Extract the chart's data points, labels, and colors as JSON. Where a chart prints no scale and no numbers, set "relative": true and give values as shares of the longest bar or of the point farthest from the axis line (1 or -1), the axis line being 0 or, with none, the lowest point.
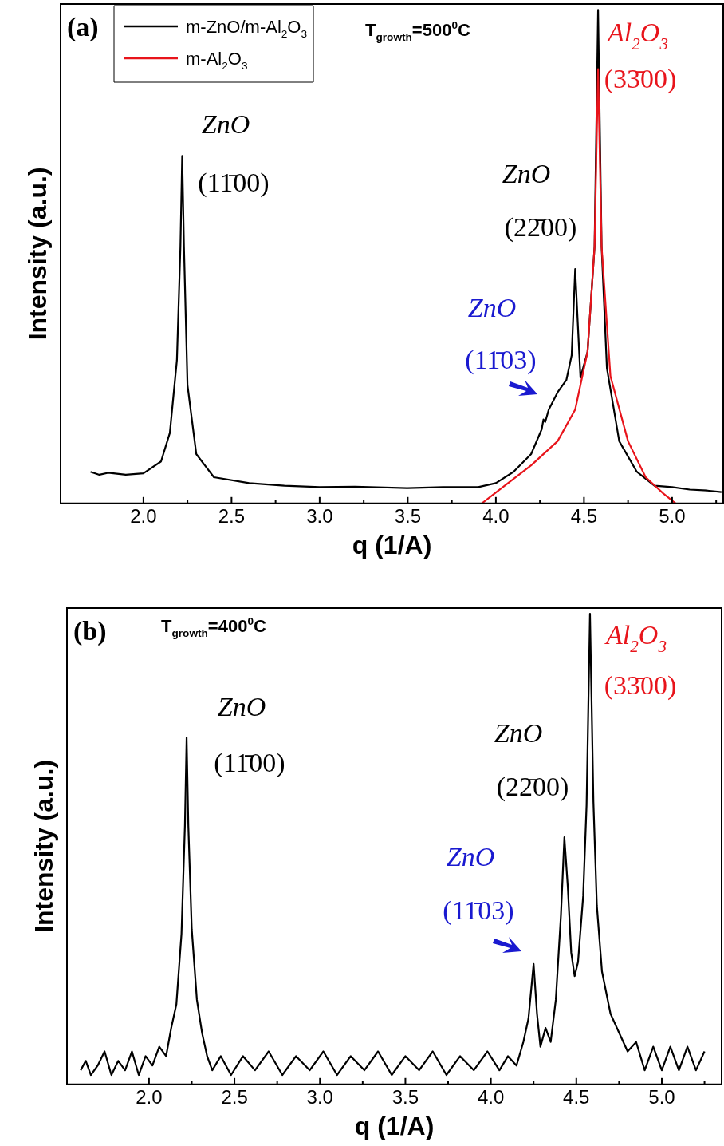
{
  "chart_data": [
    {
      "type": "line",
      "relative": true,
      "xlabel": "q (1/A)",
      "ylabel": "Intensity (a.u.)",
      "legend": "top left",
      "xlim": [
        1.53,
        5.29
      ],
      "xticks": [
        {
          "value": 2,
          "label": "2.0"
        },
        {
          "value": 2.5,
          "label": "2.5"
        },
        {
          "value": 3,
          "label": "3.0"
        },
        {
          "value": 3.5,
          "label": "3.5"
        },
        {
          "value": 4,
          "label": "4.0"
        },
        {
          "value": 4.5,
          "label": "4.5"
        },
        {
          "value": 5,
          "label": "5.0"
        }
      ],
      "series": [
        {
          "name": "m-ZnO/m-Al$_{2}$O$_{3}$",
          "color": "#000000",
          "x": [
            1.7,
            1.75,
            1.8,
            1.9,
            2.0,
            2.1,
            2.15,
            2.19,
            2.21,
            2.22,
            2.23,
            2.25,
            2.3,
            2.4,
            2.6,
            2.8,
            3.0,
            3.2,
            3.5,
            3.7,
            3.9,
            4.0,
            4.1,
            4.2,
            4.26,
            4.27,
            4.28,
            4.3,
            4.35,
            4.4,
            4.43,
            4.45,
            4.46,
            4.48,
            4.52,
            4.56,
            4.58,
            4.6,
            4.63,
            4.7,
            4.8,
            4.9,
            5.0,
            5.1,
            5.2,
            5.28
          ],
          "values": [
            0.064,
            0.058,
            0.062,
            0.058,
            0.061,
            0.085,
            0.143,
            0.29,
            0.52,
            0.704,
            0.52,
            0.24,
            0.1,
            0.053,
            0.041,
            0.036,
            0.033,
            0.034,
            0.031,
            0.033,
            0.033,
            0.041,
            0.064,
            0.1,
            0.15,
            0.17,
            0.165,
            0.19,
            0.225,
            0.25,
            0.3,
            0.475,
            0.4,
            0.255,
            0.307,
            0.52,
            1,
            0.52,
            0.274,
            0.126,
            0.064,
            0.036,
            0.033,
            0.028,
            0.026,
            0.023
          ]
        },
        {
          "name": "m-Al$_{2}$O$_{3}$",
          "color": "#e8141b",
          "x": [
            3.92,
            4.05,
            4.2,
            4.35,
            4.45,
            4.52,
            4.56,
            4.58,
            4.6,
            4.65,
            4.75,
            4.85,
            4.95,
            5.02
          ],
          "values": [
            0,
            0.036,
            0.077,
            0.126,
            0.19,
            0.307,
            0.52,
            0.88,
            0.52,
            0.258,
            0.126,
            0.053,
            0.02,
            0
          ]
        }
      ],
      "annotations": [
        "(a)",
        "T$_{growth}$=500$^{0}$C",
        "ZnO",
        "(11̄00)",
        "ZnO",
        "(22̄00)",
        "ZnO",
        "(11̄03)",
        "Al$_{2}$O$_{3}$",
        "(33̄00)"
      ]
    },
    {
      "type": "line",
      "relative": true,
      "xlabel": "q (1/A)",
      "ylabel": "Intensity (a.u.)",
      "xlim": [
        1.52,
        5.35
      ],
      "xticks": [
        {
          "value": 2,
          "label": "2.0"
        },
        {
          "value": 2.5,
          "label": "2.5"
        },
        {
          "value": 3,
          "label": "3.0"
        },
        {
          "value": 3.5,
          "label": "3.5"
        },
        {
          "value": 4,
          "label": "4.0"
        },
        {
          "value": 4.5,
          "label": "4.5"
        },
        {
          "value": 5,
          "label": "5.0"
        }
      ],
      "series": [
        {
          "color": "#000000",
          "x": [
            1.6,
            1.63,
            1.66,
            1.7,
            1.74,
            1.78,
            1.82,
            1.86,
            1.9,
            1.94,
            1.98,
            2.02,
            2.06,
            2.1,
            2.13,
            2.16,
            2.19,
            2.21,
            2.22,
            2.23,
            2.25,
            2.28,
            2.31,
            2.34,
            2.37,
            2.42,
            2.48,
            2.55,
            2.62,
            2.7,
            2.78,
            2.86,
            2.94,
            3.02,
            3.1,
            3.18,
            3.26,
            3.34,
            3.42,
            3.5,
            3.58,
            3.66,
            3.74,
            3.82,
            3.9,
            3.98,
            4.05,
            4.1,
            4.15,
            4.19,
            4.22,
            4.25,
            4.27,
            4.29,
            4.32,
            4.35,
            4.38,
            4.41,
            4.43,
            4.45,
            4.47,
            4.49,
            4.51,
            4.54,
            4.56,
            4.58,
            4.6,
            4.62,
            4.65,
            4.7,
            4.75,
            4.8,
            4.85,
            4.9,
            4.95,
            5.0,
            5.05,
            5.1,
            5.15,
            5.2,
            5.25
          ],
          "values": [
            0.03,
            0.05,
            0.02,
            0.04,
            0.07,
            0.02,
            0.05,
            0.03,
            0.07,
            0.02,
            0.06,
            0.04,
            0.08,
            0.06,
            0.12,
            0.17,
            0.32,
            0.55,
            0.737,
            0.55,
            0.33,
            0.18,
            0.11,
            0.06,
            0.03,
            0.06,
            0.02,
            0.06,
            0.03,
            0.07,
            0.02,
            0.06,
            0.03,
            0.07,
            0.02,
            0.06,
            0.03,
            0.07,
            0.02,
            0.06,
            0.03,
            0.07,
            0.02,
            0.06,
            0.03,
            0.07,
            0.03,
            0.06,
            0.04,
            0.09,
            0.14,
            0.256,
            0.15,
            0.08,
            0.12,
            0.09,
            0.18,
            0.36,
            0.525,
            0.42,
            0.28,
            0.23,
            0.26,
            0.4,
            0.594,
            1,
            0.6,
            0.38,
            0.24,
            0.15,
            0.11,
            0.07,
            0.09,
            0.03,
            0.08,
            0.03,
            0.08,
            0.03,
            0.08,
            0.03,
            0.07
          ]
        }
      ],
      "annotations": [
        "(b)",
        "T$_{growth}$=400$^{0}$C",
        "ZnO",
        "(11̄00)",
        "ZnO",
        "(22̄00)",
        "ZnO",
        "(11̄03)",
        "Al$_{2}$O$_{3}$",
        "(33̄00)"
      ]
    }
  ]
}
